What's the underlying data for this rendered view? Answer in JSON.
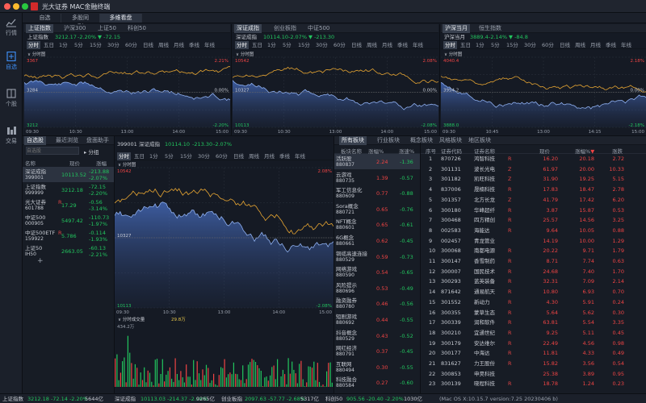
{
  "window": {
    "title": "光大证券 MAC金融终端"
  },
  "sidebar": {
    "items": [
      {
        "label": "行情",
        "icon": "chart-line-icon"
      },
      {
        "label": "自选",
        "icon": "bookmark-icon",
        "active": true
      },
      {
        "label": "个股",
        "icon": "person-icon"
      },
      {
        "label": "交易",
        "icon": "trade-icon"
      }
    ]
  },
  "top_tabs": [
    "自选",
    "多股同列",
    "多维看盘"
  ],
  "panels": [
    {
      "tabs": [
        "上证指数",
        "沪深300",
        "上证50",
        "科创50"
      ],
      "quote": {
        "price": "3212.17",
        "chg": "-2.20%",
        "diff": "▼ -72.15"
      }
    },
    {
      "tabs": [
        "深证成指",
        "创业板指",
        "中证500"
      ],
      "quote": {
        "price": "10114.10",
        "chg": "-2.07%",
        "diff": "▼ -213.30"
      }
    },
    {
      "tabs": [
        "沪深当月",
        "恒生指数"
      ],
      "quote": {
        "price": "3889.4",
        "chg": "-2.14%",
        "diff": "▼ -84.8"
      }
    }
  ],
  "periods": [
    "分时",
    "五日",
    "1分",
    "5分",
    "15分",
    "30分",
    "60分",
    "日线",
    "周线",
    "月线",
    "季线",
    "年线"
  ],
  "chart_labels": {
    "intraday": "分时图",
    "c1": {
      "high": "3367",
      "low": "3212",
      "mid": "3284",
      "pct_hi": "2.21%",
      "pct_mid": "0.00%",
      "pct_lo": "-2.20%"
    },
    "c2": {
      "high": "10542",
      "low": "10113",
      "mid": "10327",
      "pct_hi": "2.08%",
      "pct_mid": "0.00%",
      "pct_lo": "-2.08%"
    },
    "c3": {
      "high": "4040.4",
      "low": "3888.0",
      "mid": "3954.2",
      "pct_hi": "2.18%",
      "pct_mid": "0.00%",
      "pct_lo": "-2.18%"
    },
    "times": [
      "09:30",
      "10:30",
      "13:00",
      "14:00",
      "15:00"
    ],
    "times3": [
      "09:30",
      "10:45",
      "13:00",
      "14:15",
      "15:00"
    ]
  },
  "watchlist": {
    "tabs": [
      "自选股",
      "最近浏览",
      "盘面助手"
    ],
    "search_placeholder": "自选股",
    "group_label": "分组",
    "headers": [
      "名称",
      "现价",
      "涨幅"
    ],
    "rows": [
      {
        "name": "深证成指",
        "code": "399001",
        "price": "10113.52",
        "chg": "-213.88",
        "pct": "-2.07%",
        "dir": "down"
      },
      {
        "name": "上证指数",
        "code": "999999",
        "price": "3212.18",
        "chg": "-72.15",
        "pct": "-2.20%",
        "dir": "down"
      },
      {
        "name": "光大证券",
        "code": "601788",
        "price": "17.29",
        "chg": "-0.56",
        "pct": "-3.14%",
        "dir": "down",
        "tag": "R"
      },
      {
        "name": "中证500",
        "code": "000905",
        "price": "5497.42",
        "chg": "-110.73",
        "pct": "-1.97%",
        "dir": "down"
      },
      {
        "name": "中证500ETF",
        "code": "159922",
        "price": "5.786",
        "chg": "-0.114",
        "pct": "-1.93%",
        "dir": "down",
        "tag": "R"
      },
      {
        "name": "上证50",
        "code": "IH50",
        "price": "2663.05",
        "chg": "-60.13",
        "pct": "-2.21%",
        "dir": "down"
      }
    ],
    "add_label": "+"
  },
  "main_chart": {
    "code": "399001",
    "name": "深证成指",
    "price": "10114.10",
    "diff": "-213.30",
    "pct": "-2.07%",
    "high": "10542",
    "low": "10113",
    "mid": "10327",
    "pct_hi": "2.08%",
    "pct_lo": "-2.08%",
    "volume_label": "分时成交量",
    "volume_value": "29.8万",
    "volume_max": "434.2万",
    "times": [
      "09:30",
      "10:30",
      "13:00",
      "14:00",
      "15:00"
    ]
  },
  "sectors": {
    "tabs": [
      "所有板块",
      "行业板块",
      "概念板块",
      "风格板块",
      "地区板块"
    ],
    "headers": [
      "板块名称",
      "涨幅%",
      "涨速%"
    ],
    "rows": [
      {
        "name": "活跃股",
        "code": "880837",
        "pct": "2.24",
        "speed": "-1.36"
      },
      {
        "name": "云游戏",
        "code": "880735",
        "pct": "1.39",
        "speed": "-0.57"
      },
      {
        "name": "军工信息化",
        "code": "880609",
        "pct": "0.77",
        "speed": "-0.88"
      },
      {
        "name": "Sora概念",
        "code": "880721",
        "pct": "0.65",
        "speed": "-0.76"
      },
      {
        "name": "NFT概念",
        "code": "880601",
        "pct": "0.65",
        "speed": "-0.61"
      },
      {
        "name": "6G概念",
        "code": "880661",
        "pct": "0.62",
        "speed": "-0.45"
      },
      {
        "name": "铜缆高速连接",
        "code": "880529",
        "pct": "0.59",
        "speed": "-0.73"
      },
      {
        "name": "网络游戏",
        "code": "880590",
        "pct": "0.54",
        "speed": "-0.65"
      },
      {
        "name": "风险提示",
        "code": "880696",
        "pct": "0.53",
        "speed": "-0.49"
      },
      {
        "name": "融资融券",
        "code": "880780",
        "pct": "0.46",
        "speed": "-0.56"
      },
      {
        "name": "短剧游戏",
        "code": "880692",
        "pct": "0.44",
        "speed": "-0.55"
      },
      {
        "name": "抖音概念",
        "code": "880529",
        "pct": "0.43",
        "speed": "-0.52"
      },
      {
        "name": "网红经济",
        "code": "880791",
        "pct": "0.37",
        "speed": "-0.45"
      },
      {
        "name": "互联网",
        "code": "880494",
        "pct": "0.30",
        "speed": "-0.55"
      },
      {
        "name": "科技融合",
        "code": "880584",
        "pct": "0.27",
        "speed": "-0.60"
      }
    ]
  },
  "stocks": {
    "headers": [
      "序号",
      "证券代码",
      "证券名称",
      "现价",
      "涨幅%",
      "涨跌"
    ],
    "rows": [
      {
        "n": "1",
        "code": "870726",
        "name": "鸿智科技",
        "tag": "R",
        "price": "16.20",
        "pct": "20.18",
        "chg": "2.72"
      },
      {
        "n": "2",
        "code": "301131",
        "name": "波长光电",
        "tag": "Z",
        "price": "61.97",
        "pct": "20.00",
        "chg": "10.33"
      },
      {
        "n": "3",
        "code": "301182",
        "name": "凯旺科技",
        "tag": "Z",
        "price": "31.90",
        "pct": "19.25",
        "chg": "5.15"
      },
      {
        "n": "4",
        "code": "837006",
        "name": "晟楠科技",
        "tag": "R",
        "price": "17.83",
        "pct": "18.47",
        "chg": "2.78"
      },
      {
        "n": "5",
        "code": "301357",
        "name": "北方长龙",
        "tag": "Z",
        "price": "41.79",
        "pct": "17.42",
        "chg": "6.20"
      },
      {
        "n": "6",
        "code": "300180",
        "name": "华峰超纤",
        "tag": "R",
        "price": "3.87",
        "pct": "15.87",
        "chg": "0.53"
      },
      {
        "n": "7",
        "code": "300468",
        "name": "四方精创",
        "tag": "R",
        "price": "25.57",
        "pct": "14.56",
        "chg": "3.25"
      },
      {
        "n": "8",
        "code": "002583",
        "name": "海能达",
        "tag": "R",
        "price": "9.64",
        "pct": "10.05",
        "chg": "0.88"
      },
      {
        "n": "9",
        "code": "002457",
        "name": "青龙管业",
        "tag": "",
        "price": "14.19",
        "pct": "10.00",
        "chg": "1.29"
      },
      {
        "n": "10",
        "code": "300068",
        "name": "南都电源",
        "tag": "R",
        "price": "20.22",
        "pct": "9.71",
        "chg": "1.79"
      },
      {
        "n": "11",
        "code": "300147",
        "name": "香雪制药",
        "tag": "R",
        "price": "8.71",
        "pct": "7.74",
        "chg": "0.63"
      },
      {
        "n": "12",
        "code": "300007",
        "name": "国民技术",
        "tag": "R",
        "price": "24.68",
        "pct": "7.40",
        "chg": "1.70"
      },
      {
        "n": "13",
        "code": "300293",
        "name": "蓝英装备",
        "tag": "R",
        "price": "32.31",
        "pct": "7.09",
        "chg": "2.14"
      },
      {
        "n": "14",
        "code": "871642",
        "name": "通易航天",
        "tag": "R",
        "price": "10.80",
        "pct": "6.93",
        "chg": "0.70"
      },
      {
        "n": "15",
        "code": "301552",
        "name": "新动力",
        "tag": "R",
        "price": "4.30",
        "pct": "5.91",
        "chg": "0.24"
      },
      {
        "n": "16",
        "code": "300355",
        "name": "蒙草生态",
        "tag": "R",
        "price": "5.64",
        "pct": "5.62",
        "chg": "0.30"
      },
      {
        "n": "17",
        "code": "300339",
        "name": "润和软件",
        "tag": "R",
        "price": "63.81",
        "pct": "5.54",
        "chg": "3.35"
      },
      {
        "n": "18",
        "code": "300210",
        "name": "宜通世纪",
        "tag": "R",
        "price": "9.25",
        "pct": "5.11",
        "chg": "0.45"
      },
      {
        "n": "19",
        "code": "300179",
        "name": "安达维尔",
        "tag": "R",
        "price": "22.49",
        "pct": "4.56",
        "chg": "0.98"
      },
      {
        "n": "20",
        "code": "300177",
        "name": "中海达",
        "tag": "R",
        "price": "11.81",
        "pct": "4.33",
        "chg": "0.49"
      },
      {
        "n": "21",
        "code": "831627",
        "name": "力王股份",
        "tag": "R",
        "price": "15.82",
        "pct": "3.56",
        "chg": "0.54"
      },
      {
        "n": "22",
        "code": "300853",
        "name": "申昊科技",
        "tag": "",
        "price": "25.38",
        "pct": "3.89",
        "chg": "0.95"
      },
      {
        "n": "23",
        "code": "300139",
        "name": "晓程科技",
        "tag": "R",
        "price": "18.78",
        "pct": "1.24",
        "chg": "0.23"
      }
    ]
  },
  "status": {
    "sh": {
      "label": "上证指数",
      "val": "3212.18 -72.14 -2.20%",
      "amt": "5644亿"
    },
    "sz": {
      "label": "深证成指",
      "val": "10113.03 -214.37 -2.08%",
      "amt": "9265亿"
    },
    "cy": {
      "label": "创业板指",
      "val": "2097.63 -57.77 -2.68%",
      "amt": "5317亿"
    },
    "kc": {
      "label": "科创50",
      "val": "905.56 -20.40 -2.20%",
      "amt": "1030亿"
    },
    "version": "(Mac OS X:10.15.7 version:7.25 20230406 b)"
  }
}
